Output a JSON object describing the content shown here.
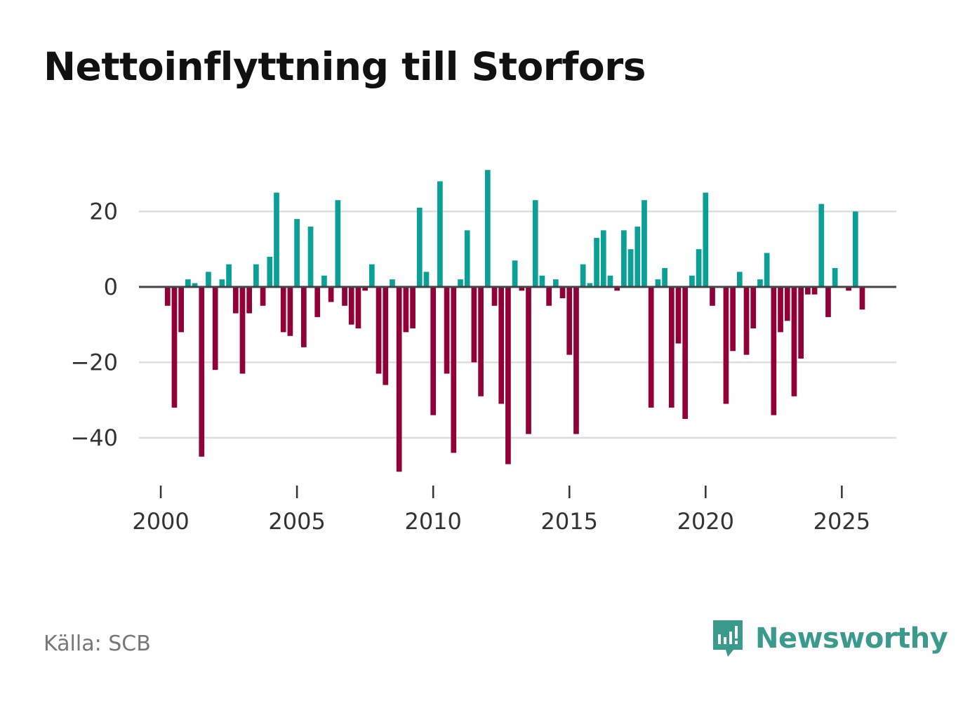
{
  "chart_data": {
    "type": "bar",
    "title": "Nettoinflyttning till Storfors",
    "xlabel": "",
    "ylabel": "",
    "ylim": [
      -55,
      33
    ],
    "xlim": [
      1999.2,
      2027.0
    ],
    "yticks": [
      20,
      0,
      -20,
      -40
    ],
    "ytick_labels": [
      "20",
      "0",
      "−20",
      "−40"
    ],
    "xticks": [
      2000,
      2005,
      2010,
      2015,
      2020,
      2025
    ],
    "xtick_labels": [
      "2000",
      "2005",
      "2010",
      "2015",
      "2020",
      "2025"
    ],
    "grid": true,
    "positive_color": "#0aa095",
    "negative_color": "#920038",
    "x_start": 2000.0,
    "x_step": 0.25,
    "values": [
      0,
      -5,
      -32,
      -12,
      2,
      1,
      -45,
      4,
      -22,
      2,
      6,
      -7,
      -23,
      -7,
      6,
      -5,
      8,
      25,
      -12,
      -13,
      18,
      -16,
      16,
      -8,
      3,
      -4,
      23,
      -5,
      -10,
      -11,
      -1,
      6,
      -23,
      -26,
      2,
      -49,
      -12,
      -11,
      21,
      4,
      -34,
      28,
      -23,
      -44,
      2,
      15,
      -20,
      -29,
      31,
      -5,
      -31,
      -47,
      7,
      -1,
      -39,
      23,
      3,
      -5,
      2,
      -3,
      -18,
      -39,
      6,
      1,
      13,
      15,
      3,
      -1,
      15,
      10,
      16,
      23,
      -32,
      2,
      5,
      -32,
      -15,
      -35,
      3,
      10,
      25,
      -5,
      0,
      -31,
      -17,
      4,
      -18,
      -11,
      2,
      9,
      -34,
      -12,
      -9,
      -29,
      -19,
      -2,
      -2,
      22,
      -8,
      5,
      0,
      -1,
      20,
      -6
    ]
  },
  "footer": {
    "source": "Källa: SCB",
    "brand": "Newsworthy"
  },
  "colors": {
    "brand": "#3a9a8c",
    "grid": "#dddddd",
    "zero_line": "#444444"
  }
}
